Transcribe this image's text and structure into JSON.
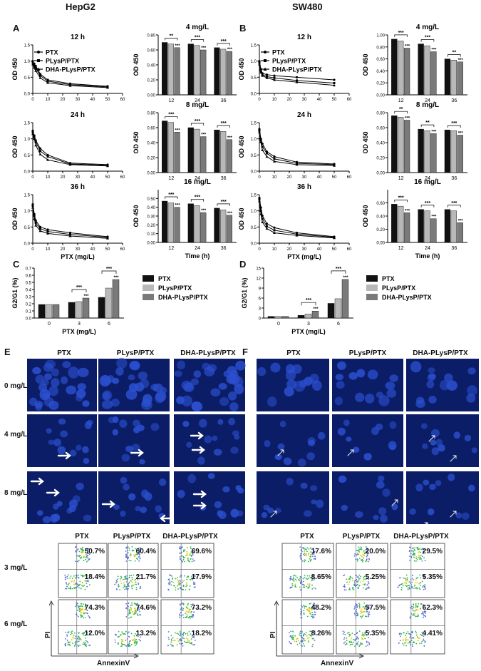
{
  "figure": {
    "title_left": "HepG2",
    "title_right": "SW480",
    "panel_letters": [
      "A",
      "B",
      "C",
      "D",
      "E",
      "F"
    ]
  },
  "line_plots": {
    "times": [
      "12 h",
      "24 h",
      "36 h"
    ],
    "legend": [
      "PTX",
      "PLysP/PTX",
      "DHA-PLysP/PTX"
    ],
    "ylabel": "OD 450",
    "xlabel": "PTX (mg/L)",
    "x_ticks": [
      "0",
      "10",
      "20",
      "30",
      "40",
      "50",
      "60"
    ],
    "y_ticks": [
      "0.0",
      "0.5",
      "1.0",
      "1.5"
    ]
  },
  "bar_plots": {
    "titles": [
      "4 mg/L",
      "8 mg/L",
      "16 mg/L"
    ],
    "ylabel": "OD 450",
    "xlabel": "Time (h)",
    "x_ticks": [
      "12",
      "24",
      "36"
    ],
    "y_ticks": [
      "0.00",
      "0.20",
      "0.40",
      "0.60",
      "0.80"
    ]
  },
  "g2g1": {
    "ylabel": "G2/G1 (%)",
    "xlabel": "PTX (mg/L)",
    "x_ticks": [
      "0",
      "3",
      "6"
    ],
    "legend": [
      "PTX",
      "PLysP/PTX",
      "DHA-PLysP/PTX"
    ],
    "hep_y_ticks": [
      "0.0",
      "0.1",
      "0.2",
      "0.3",
      "0.4",
      "0.5",
      "0.6",
      "0.7"
    ],
    "sw_y_ticks": [
      "0",
      "3",
      "6",
      "9",
      "12",
      "15"
    ]
  },
  "micro": {
    "cols": [
      "PTX",
      "PLysP/PTX",
      "DHA-PLysP/PTX"
    ],
    "rows": [
      "0 mg/L",
      "4 mg/L",
      "8 mg/L"
    ]
  },
  "flow": {
    "cols": [
      "PTX",
      "PLysP/PTX",
      "DHA-PLysP/PTX"
    ],
    "rows": [
      "3 mg/L",
      "6 mg/L"
    ],
    "ylabel": "PI",
    "xlabel": "AnnexinV",
    "hep": {
      "upper": [
        [
          "50.7%",
          "60.4%",
          "69.6%"
        ],
        [
          "74.3%",
          "74.6%",
          "73.2%"
        ]
      ],
      "lower": [
        [
          "18.4%",
          "21.7%",
          "17.9%"
        ],
        [
          "12.0%",
          "13.2%",
          "18.2%"
        ]
      ]
    },
    "sw": {
      "upper": [
        [
          "17.6%",
          "20.0%",
          "29.5%"
        ],
        [
          "48.2%",
          "57.5%",
          "62.3%"
        ]
      ],
      "lower": [
        [
          "8.65%",
          "5.25%",
          "5.35%"
        ],
        [
          "8.26%",
          "5.35%",
          "4.41%"
        ]
      ]
    }
  },
  "colors": {
    "black": "#111111",
    "light": "#b8b8b8",
    "mid": "#7a7a7a",
    "fluor_bg": "#0b1d66",
    "nucleus": "#2b4fcf"
  },
  "chart_data": [
    {
      "type": "line",
      "title": "12 h",
      "cell": "HepG2",
      "xlabel": "",
      "ylabel": "OD 450",
      "ylim": [
        0,
        1.5
      ],
      "x": [
        0,
        1,
        2,
        5,
        10,
        25,
        50
      ],
      "series": [
        {
          "name": "PTX",
          "values": [
            1.0,
            0.92,
            0.85,
            0.6,
            0.42,
            0.3,
            0.22
          ]
        },
        {
          "name": "PLysP/PTX",
          "values": [
            0.95,
            0.86,
            0.78,
            0.55,
            0.38,
            0.27,
            0.2
          ]
        },
        {
          "name": "DHA-PLysP/PTX",
          "values": [
            0.9,
            0.8,
            0.7,
            0.48,
            0.33,
            0.24,
            0.18
          ]
        }
      ]
    },
    {
      "type": "line",
      "title": "24 h",
      "cell": "HepG2",
      "xlabel": "",
      "ylabel": "OD 450",
      "ylim": [
        0,
        1.5
      ],
      "x": [
        0,
        1,
        2,
        5,
        10,
        25,
        50
      ],
      "series": [
        {
          "name": "PTX",
          "values": [
            1.25,
            1.1,
            0.95,
            0.7,
            0.5,
            0.25,
            0.2
          ]
        },
        {
          "name": "PLysP/PTX",
          "values": [
            1.2,
            1.05,
            0.9,
            0.62,
            0.45,
            0.22,
            0.18
          ]
        },
        {
          "name": "DHA-PLysP/PTX",
          "values": [
            1.15,
            1.0,
            0.8,
            0.52,
            0.35,
            0.2,
            0.16
          ]
        }
      ]
    },
    {
      "type": "line",
      "title": "36 h",
      "cell": "HepG2",
      "xlabel": "PTX (mg/L)",
      "ylabel": "OD 450",
      "ylim": [
        0,
        1.5
      ],
      "x": [
        0,
        1,
        2,
        5,
        10,
        25,
        50
      ],
      "series": [
        {
          "name": "PTX",
          "values": [
            1.2,
            0.9,
            0.7,
            0.5,
            0.42,
            0.32,
            0.2
          ]
        },
        {
          "name": "PLysP/PTX",
          "values": [
            1.15,
            0.85,
            0.62,
            0.45,
            0.36,
            0.27,
            0.18
          ]
        },
        {
          "name": "DHA-PLysP/PTX",
          "values": [
            1.1,
            0.75,
            0.55,
            0.38,
            0.3,
            0.22,
            0.15
          ]
        }
      ]
    },
    {
      "type": "line",
      "title": "12 h",
      "cell": "SW480",
      "xlabel": "",
      "ylabel": "OD 450",
      "ylim": [
        0,
        1.5
      ],
      "x": [
        0,
        1,
        2,
        5,
        10,
        25,
        50
      ],
      "series": [
        {
          "name": "PTX",
          "values": [
            1.0,
            0.75,
            0.62,
            0.58,
            0.55,
            0.5,
            0.42
          ]
        },
        {
          "name": "PLysP/PTX",
          "values": [
            0.95,
            0.7,
            0.58,
            0.52,
            0.48,
            0.4,
            0.32
          ]
        },
        {
          "name": "DHA-PLysP/PTX",
          "values": [
            0.9,
            0.65,
            0.55,
            0.48,
            0.42,
            0.35,
            0.25
          ]
        }
      ]
    },
    {
      "type": "line",
      "title": "24 h",
      "cell": "SW480",
      "xlabel": "",
      "ylabel": "OD 450",
      "ylim": [
        0,
        1.5
      ],
      "x": [
        0,
        1,
        2,
        5,
        10,
        25,
        50
      ],
      "series": [
        {
          "name": "PTX",
          "values": [
            1.3,
            1.0,
            0.85,
            0.6,
            0.45,
            0.28,
            0.22
          ]
        },
        {
          "name": "PLysP/PTX",
          "values": [
            1.25,
            0.95,
            0.75,
            0.55,
            0.38,
            0.24,
            0.2
          ]
        },
        {
          "name": "DHA-PLysP/PTX",
          "values": [
            1.2,
            0.9,
            0.65,
            0.45,
            0.3,
            0.2,
            0.17
          ]
        }
      ]
    },
    {
      "type": "line",
      "title": "36 h",
      "cell": "SW480",
      "xlabel": "PTX (mg/L)",
      "ylabel": "OD 450",
      "ylim": [
        0,
        1.5
      ],
      "x": [
        0,
        1,
        2,
        5,
        10,
        25,
        50
      ],
      "series": [
        {
          "name": "PTX",
          "values": [
            1.4,
            1.1,
            0.85,
            0.6,
            0.48,
            0.32,
            0.2
          ]
        },
        {
          "name": "PLysP/PTX",
          "values": [
            1.35,
            1.0,
            0.75,
            0.52,
            0.4,
            0.28,
            0.18
          ]
        },
        {
          "name": "DHA-PLysP/PTX",
          "values": [
            1.3,
            0.9,
            0.65,
            0.45,
            0.32,
            0.24,
            0.16
          ]
        }
      ]
    },
    {
      "type": "bar",
      "title": "4 mg/L",
      "cell": "HepG2",
      "categories": [
        "12",
        "24",
        "36"
      ],
      "ylim": [
        0,
        0.8
      ],
      "series": [
        {
          "name": "PTX",
          "values": [
            0.7,
            0.68,
            0.63
          ]
        },
        {
          "name": "PLysP/PTX",
          "values": [
            0.68,
            0.66,
            0.61
          ]
        },
        {
          "name": "DHA-PLysP/PTX",
          "values": [
            0.63,
            0.6,
            0.58
          ]
        }
      ],
      "sig": [
        [
          "**",
          "***"
        ],
        [
          "***",
          "***"
        ],
        [
          "***",
          "***"
        ]
      ]
    },
    {
      "type": "bar",
      "title": "8 mg/L",
      "cell": "HepG2",
      "categories": [
        "12",
        "24",
        "36"
      ],
      "ylim": [
        0,
        0.8
      ],
      "series": [
        {
          "name": "PTX",
          "values": [
            0.69,
            0.6,
            0.57
          ]
        },
        {
          "name": "PLysP/PTX",
          "values": [
            0.67,
            0.58,
            0.55
          ]
        },
        {
          "name": "DHA-PLysP/PTX",
          "values": [
            0.54,
            0.48,
            0.44
          ]
        }
      ],
      "sig": [
        [
          "***",
          "***"
        ],
        [
          "***",
          "***"
        ],
        [
          "***",
          "***"
        ]
      ]
    },
    {
      "type": "bar",
      "title": "16 mg/L",
      "cell": "HepG2",
      "xlabel": "Time (h)",
      "categories": [
        "12",
        "24",
        "36"
      ],
      "ylim": [
        0,
        0.6
      ],
      "series": [
        {
          "name": "PTX",
          "values": [
            0.47,
            0.44,
            0.39
          ]
        },
        {
          "name": "PLysP/PTX",
          "values": [
            0.45,
            0.42,
            0.37
          ]
        },
        {
          "name": "DHA-PLysP/PTX",
          "values": [
            0.4,
            0.34,
            0.31
          ]
        }
      ],
      "sig": [
        [
          "***",
          "***"
        ],
        [
          "***",
          "***"
        ],
        [
          "***",
          "***"
        ]
      ]
    },
    {
      "type": "bar",
      "title": "4 mg/L",
      "cell": "SW480",
      "categories": [
        "12",
        "24",
        "36"
      ],
      "ylim": [
        0,
        1.0
      ],
      "series": [
        {
          "name": "PTX",
          "values": [
            0.93,
            0.85,
            0.6
          ]
        },
        {
          "name": "PLysP/PTX",
          "values": [
            0.9,
            0.82,
            0.58
          ]
        },
        {
          "name": "DHA-PLysP/PTX",
          "values": [
            0.78,
            0.72,
            0.55
          ]
        }
      ],
      "sig": [
        [
          "***",
          "***"
        ],
        [
          "***",
          "***"
        ],
        [
          "**",
          "***"
        ]
      ]
    },
    {
      "type": "bar",
      "title": "8 mg/L",
      "cell": "SW480",
      "categories": [
        "12",
        "24",
        "36"
      ],
      "ylim": [
        0,
        0.8
      ],
      "series": [
        {
          "name": "PTX",
          "values": [
            0.76,
            0.58,
            0.57
          ]
        },
        {
          "name": "PLysP/PTX",
          "values": [
            0.74,
            0.56,
            0.56
          ]
        },
        {
          "name": "DHA-PLysP/PTX",
          "values": [
            0.7,
            0.52,
            0.5
          ]
        }
      ],
      "sig": [
        [
          "**",
          "***"
        ],
        [
          "**",
          "***"
        ],
        [
          "***",
          "***"
        ]
      ]
    },
    {
      "type": "bar",
      "title": "16 mg/L",
      "cell": "SW480",
      "xlabel": "Time (h)",
      "categories": [
        "12",
        "24",
        "36"
      ],
      "ylim": [
        0,
        0.8
      ],
      "series": [
        {
          "name": "PTX",
          "values": [
            0.58,
            0.5,
            0.5
          ]
        },
        {
          "name": "PLysP/PTX",
          "values": [
            0.55,
            0.48,
            0.48
          ]
        },
        {
          "name": "DHA-PLysP/PTX",
          "values": [
            0.45,
            0.36,
            0.3
          ]
        }
      ],
      "sig": [
        [
          "***",
          "***"
        ],
        [
          "***",
          "***"
        ],
        [
          "***",
          "***"
        ]
      ]
    },
    {
      "type": "bar",
      "title": "",
      "cell": "HepG2",
      "xlabel": "PTX (mg/L)",
      "ylabel": "G2/G1 (%)",
      "categories": [
        "0",
        "3",
        "6"
      ],
      "ylim": [
        0,
        0.7
      ],
      "series": [
        {
          "name": "PTX",
          "values": [
            0.19,
            0.22,
            0.29
          ]
        },
        {
          "name": "PLysP/PTX",
          "values": [
            0.19,
            0.23,
            0.42
          ]
        },
        {
          "name": "DHA-PLysP/PTX",
          "values": [
            0.19,
            0.28,
            0.54
          ]
        }
      ]
    },
    {
      "type": "bar",
      "title": "",
      "cell": "SW480",
      "xlabel": "PTX (mg/L)",
      "ylabel": "G2/G1 (%)",
      "categories": [
        "0",
        "3",
        "6"
      ],
      "ylim": [
        0,
        15
      ],
      "series": [
        {
          "name": "PTX",
          "values": [
            0.5,
            0.8,
            4.4
          ]
        },
        {
          "name": "PLysP/PTX",
          "values": [
            0.5,
            1.2,
            5.8
          ]
        },
        {
          "name": "DHA-PLysP/PTX",
          "values": [
            0.5,
            2.1,
            11.6
          ]
        }
      ]
    }
  ]
}
